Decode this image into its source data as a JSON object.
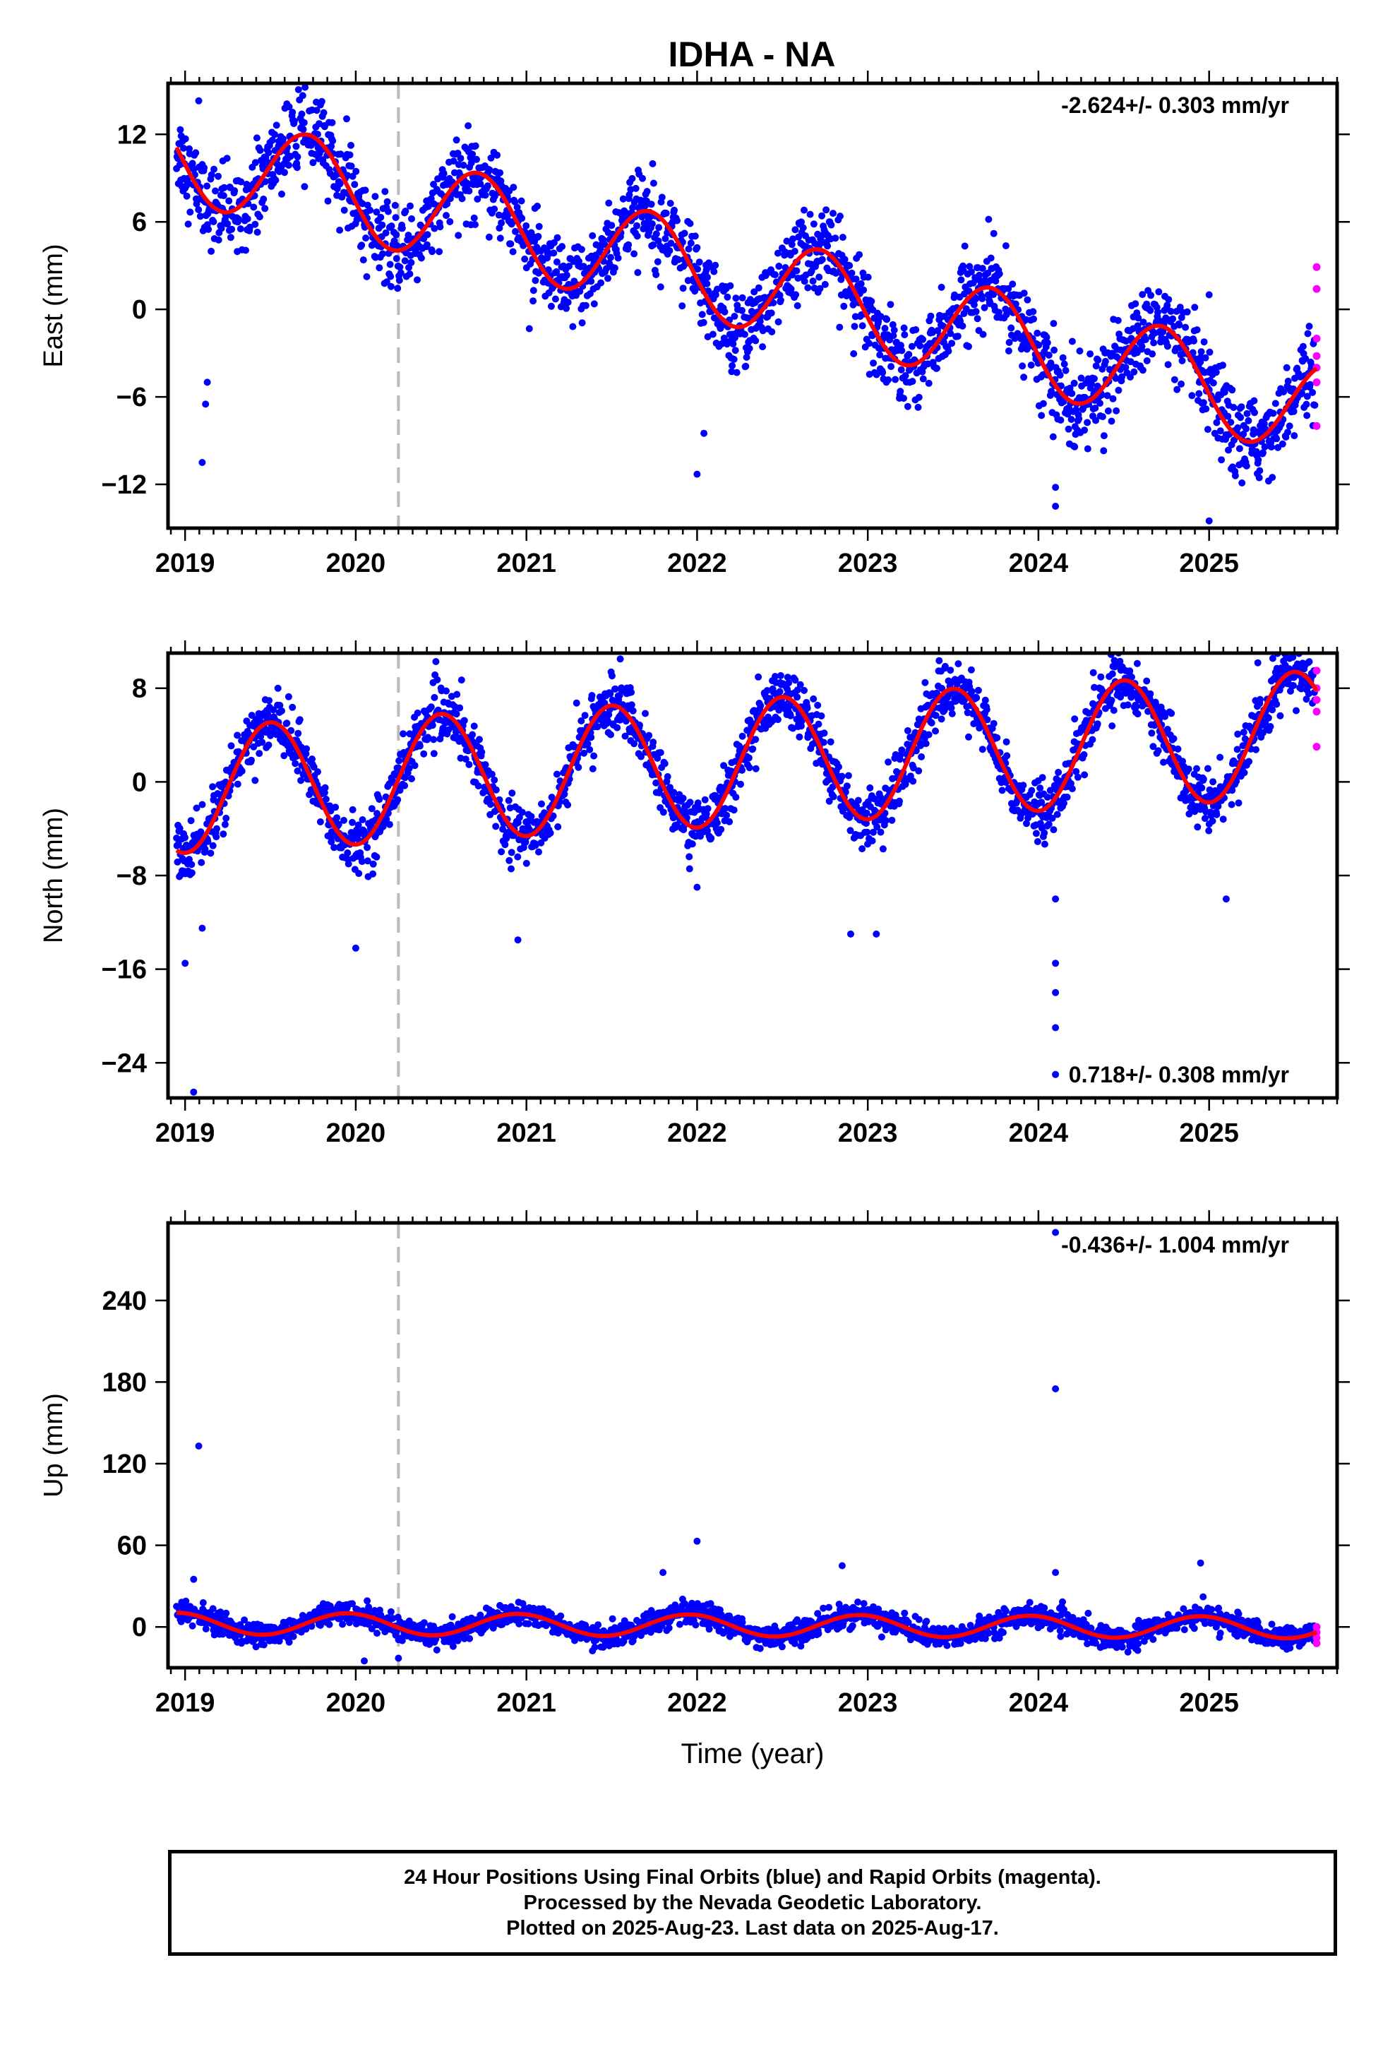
{
  "title": "IDHA - NA",
  "footer": {
    "line1": "24 Hour Positions Using Final Orbits (blue) and Rapid Orbits (magenta).",
    "line2": "Processed by the Nevada Geodetic Laboratory.",
    "line3": "Plotted on 2025-Aug-23. Last data on 2025-Aug-17."
  },
  "colors": {
    "final": "#0000ff",
    "rapid": "#ff00ff",
    "model": "#ff0000",
    "event_line": "#bbbbbb"
  },
  "chart_data": [
    {
      "type": "scatter",
      "ylabel": "East (mm)",
      "xlabel": "",
      "rate": "-2.624+/- 0.303 mm/yr",
      "rate_position": "top-right",
      "xlim": [
        2018.9,
        2025.75
      ],
      "ylim": [
        -15,
        15.5
      ],
      "yticks": [
        -12,
        -6,
        0,
        6,
        12
      ],
      "xticks": [
        2019,
        2020,
        2021,
        2022,
        2023,
        2024,
        2025
      ],
      "event_line_x": 2020.25,
      "model": {
        "rate": -2.624,
        "offset": 1.9,
        "t0": 2022.3,
        "annual_amp": 3.3,
        "peak": 2019.72
      },
      "scatter_sigma": 1.4,
      "outliers": [
        [
          2019.08,
          14.3
        ],
        [
          2019.1,
          -10.5
        ],
        [
          2019.12,
          -6.5
        ],
        [
          2019.13,
          -5.0
        ],
        [
          2022.0,
          -11.3
        ],
        [
          2022.04,
          -8.5
        ],
        [
          2024.1,
          -13.5
        ],
        [
          2024.1,
          -12.2
        ],
        [
          2024.05,
          -4.5
        ],
        [
          2025.0,
          -14.5
        ],
        [
          2025.0,
          1.0
        ]
      ],
      "rapid": [
        [
          2025.63,
          2.9
        ],
        [
          2025.63,
          1.4
        ],
        [
          2025.63,
          -2.0
        ],
        [
          2025.63,
          -3.2
        ],
        [
          2025.63,
          -4.0
        ],
        [
          2025.63,
          -5.0
        ],
        [
          2025.63,
          -8.0
        ]
      ]
    },
    {
      "type": "scatter",
      "ylabel": "North (mm)",
      "xlabel": "",
      "rate": "0.718+/- 0.308 mm/yr",
      "rate_position": "bottom-right",
      "xlim": [
        2018.9,
        2025.75
      ],
      "ylim": [
        -27,
        11
      ],
      "yticks": [
        -24,
        -16,
        -8,
        0,
        8
      ],
      "xticks": [
        2019,
        2020,
        2021,
        2022,
        2023,
        2024,
        2025
      ],
      "event_line_x": 2020.25,
      "model": {
        "rate": 0.718,
        "offset": 1.7,
        "t0": 2022.3,
        "annual_amp": 5.4,
        "peak": 2019.5
      },
      "scatter_sigma": 1.2,
      "outliers": [
        [
          2019.0,
          -15.5
        ],
        [
          2019.05,
          -26.5
        ],
        [
          2019.1,
          -12.5
        ],
        [
          2020.0,
          -14.2
        ],
        [
          2020.95,
          -13.5
        ],
        [
          2021.55,
          10.5
        ],
        [
          2022.0,
          -9.0
        ],
        [
          2022.9,
          -13.0
        ],
        [
          2023.05,
          -13.0
        ],
        [
          2024.1,
          -10.0
        ],
        [
          2024.1,
          -15.5
        ],
        [
          2024.1,
          -18.0
        ],
        [
          2024.1,
          -21.0
        ],
        [
          2024.1,
          -25.0
        ],
        [
          2025.1,
          -10.0
        ]
      ],
      "rapid": [
        [
          2025.63,
          9.5
        ],
        [
          2025.63,
          8.0
        ],
        [
          2025.63,
          7.0
        ],
        [
          2025.63,
          6.0
        ],
        [
          2025.63,
          3.0
        ]
      ]
    },
    {
      "type": "scatter",
      "ylabel": "Up (mm)",
      "xlabel": "Time (year)",
      "rate": "-0.436+/- 1.004 mm/yr",
      "rate_position": "top-right",
      "xlim": [
        2018.9,
        2025.75
      ],
      "ylim": [
        -30,
        297
      ],
      "yticks": [
        0,
        60,
        120,
        180,
        240
      ],
      "xticks": [
        2019,
        2020,
        2021,
        2022,
        2023,
        2024,
        2025
      ],
      "event_line_x": 2020.25,
      "model": {
        "rate": -0.436,
        "offset": 1.0,
        "t0": 2022.3,
        "annual_amp": 8.0,
        "peak": 2019.95
      },
      "scatter_sigma": 4.0,
      "outliers": [
        [
          2019.08,
          133
        ],
        [
          2019.05,
          35
        ],
        [
          2021.8,
          40
        ],
        [
          2022.0,
          63
        ],
        [
          2022.85,
          45
        ],
        [
          2024.1,
          175
        ],
        [
          2024.1,
          290
        ],
        [
          2024.1,
          40
        ],
        [
          2024.95,
          47
        ],
        [
          2020.05,
          -25
        ],
        [
          2020.25,
          -23
        ]
      ],
      "rapid": [
        [
          2025.63,
          0
        ],
        [
          2025.63,
          -4
        ],
        [
          2025.63,
          -8
        ],
        [
          2025.63,
          -12
        ]
      ]
    }
  ]
}
